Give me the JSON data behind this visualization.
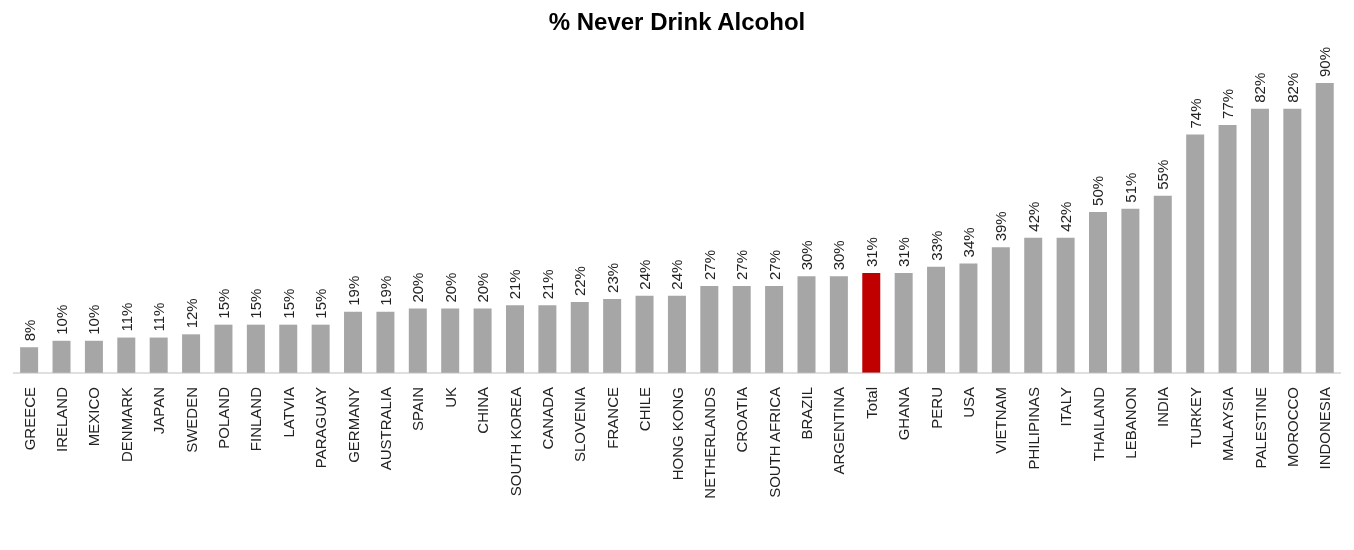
{
  "chart_data": {
    "type": "bar",
    "title": "% Never Drink Alcohol",
    "categories": [
      "GREECE",
      "IRELAND",
      "MEXICO",
      "DENMARK",
      "JAPAN",
      "SWEDEN",
      "POLAND",
      "FINLAND",
      "LATVIA",
      "PARAGUAY",
      "GERMANY",
      "AUSTRALIA",
      "SPAIN",
      "UK",
      "CHINA",
      "SOUTH KOREA",
      "CANADA",
      "SLOVENIA",
      "FRANCE",
      "CHILE",
      "HONG KONG",
      "NETHERLANDS",
      "CROATIA",
      "SOUTH AFRICA",
      "BRAZIL",
      "ARGENTINA",
      "Total",
      "GHANA",
      "PERU",
      "USA",
      "VIETNAM",
      "PHILIPINAS",
      "ITALY",
      "THAILAND",
      "LEBANON",
      "INDIA",
      "TURKEY",
      "MALAYSIA",
      "PALESTINE",
      "MOROCCO",
      "INDONESIA"
    ],
    "values": [
      8,
      10,
      10,
      11,
      11,
      12,
      15,
      15,
      15,
      15,
      19,
      19,
      20,
      20,
      20,
      21,
      21,
      22,
      23,
      24,
      24,
      27,
      27,
      27,
      30,
      30,
      31,
      31,
      33,
      34,
      39,
      42,
      42,
      50,
      51,
      55,
      74,
      77,
      82,
      82,
      90
    ],
    "value_labels": [
      "8%",
      "10%",
      "10%",
      "11%",
      "11%",
      "12%",
      "15%",
      "15%",
      "15%",
      "15%",
      "19%",
      "19%",
      "20%",
      "20%",
      "20%",
      "21%",
      "21%",
      "22%",
      "23%",
      "24%",
      "24%",
      "27%",
      "27%",
      "27%",
      "30%",
      "30%",
      "31%",
      "31%",
      "33%",
      "34%",
      "39%",
      "42%",
      "42%",
      "50%",
      "51%",
      "55%",
      "74%",
      "77%",
      "82%",
      "82%",
      "90%"
    ],
    "colors": [
      "#a6a6a6",
      "#a6a6a6",
      "#a6a6a6",
      "#a6a6a6",
      "#a6a6a6",
      "#a6a6a6",
      "#a6a6a6",
      "#a6a6a6",
      "#a6a6a6",
      "#a6a6a6",
      "#a6a6a6",
      "#a6a6a6",
      "#a6a6a6",
      "#a6a6a6",
      "#a6a6a6",
      "#a6a6a6",
      "#a6a6a6",
      "#a6a6a6",
      "#a6a6a6",
      "#a6a6a6",
      "#a6a6a6",
      "#a6a6a6",
      "#a6a6a6",
      "#a6a6a6",
      "#a6a6a6",
      "#a6a6a6",
      "#c00000",
      "#a6a6a6",
      "#a6a6a6",
      "#a6a6a6",
      "#a6a6a6",
      "#a6a6a6",
      "#a6a6a6",
      "#a6a6a6",
      "#a6a6a6",
      "#a6a6a6",
      "#a6a6a6",
      "#a6a6a6",
      "#a6a6a6",
      "#a6a6a6",
      "#a6a6a6"
    ]
  }
}
